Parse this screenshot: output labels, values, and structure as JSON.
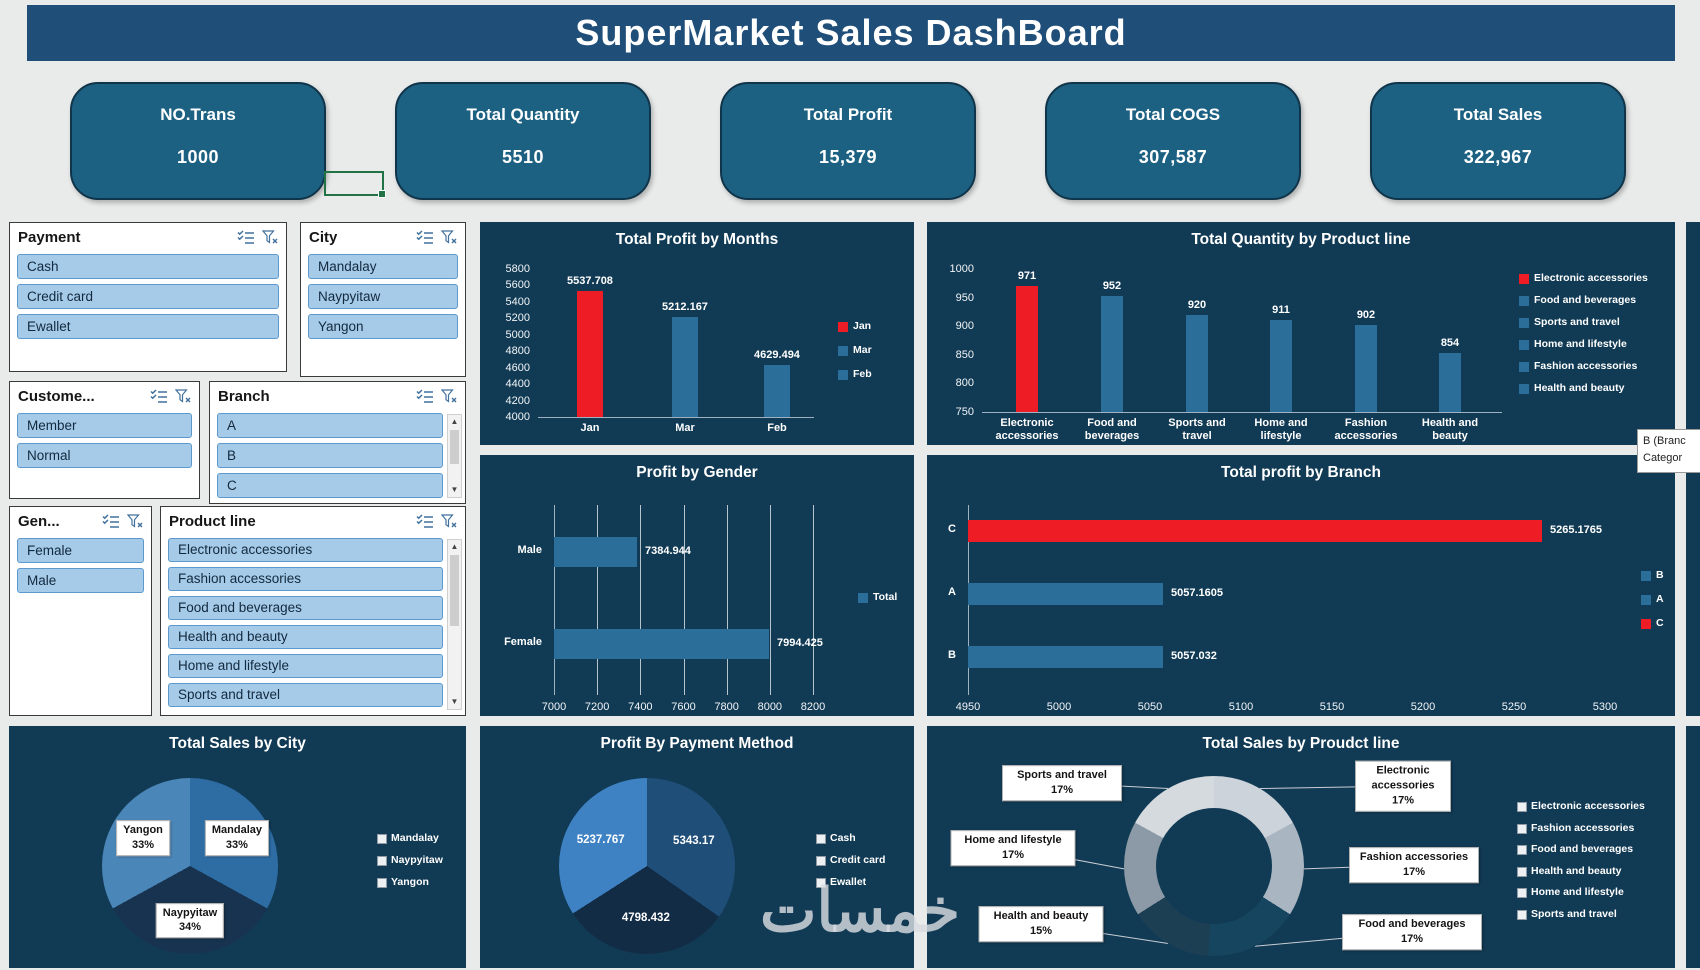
{
  "title": "SuperMarket Sales DashBoard",
  "kpis": [
    {
      "label": "NO.Trans",
      "value": "1000"
    },
    {
      "label": "Total Quantity",
      "value": "5510"
    },
    {
      "label": "Total Profit",
      "value": "15,379"
    },
    {
      "label": "Total COGS",
      "value": "307,587"
    },
    {
      "label": "Total Sales",
      "value": "322,967"
    }
  ],
  "slicers": [
    {
      "title": "Payment",
      "items": [
        "Cash",
        "Credit card",
        "Ewallet"
      ]
    },
    {
      "title": "City",
      "items": [
        "Mandalay",
        "Naypyitaw",
        "Yangon"
      ]
    },
    {
      "title": "Custome...",
      "items": [
        "Member",
        "Normal"
      ]
    },
    {
      "title": "Branch",
      "items": [
        "A",
        "B",
        "C"
      ]
    },
    {
      "title": "Gen...",
      "items": [
        "Female",
        "Male"
      ]
    },
    {
      "title": "Product line",
      "items": [
        "Electronic accessories",
        "Fashion accessories",
        "Food and beverages",
        "Health and beauty",
        "Home and lifestyle",
        "Sports and travel"
      ]
    }
  ],
  "tooltip": {
    "line1": "B (Branc",
    "line2": "Categor"
  },
  "watermark": "خمسات",
  "chart_data": [
    {
      "id": "profit_by_months",
      "type": "bar",
      "title": "Total Profit by Months",
      "categories": [
        "Jan",
        "Mar",
        "Feb"
      ],
      "values": [
        5537.708,
        5212.167,
        4629.494
      ],
      "labels": [
        "5537.708",
        "5212.167",
        "4629.494"
      ],
      "bar_colors": [
        "#ee1c25",
        "#2b6e99",
        "#2b6e99"
      ],
      "ylim": [
        4000,
        5800
      ],
      "yticks": [
        5800,
        5600,
        5400,
        5200,
        5000,
        4800,
        4600,
        4400,
        4200,
        4000
      ],
      "legend": [
        {
          "label": "Jan",
          "color": "#ee1c25"
        },
        {
          "label": "Mar",
          "color": "#2b6e99"
        },
        {
          "label": "Feb",
          "color": "#2b6e99"
        }
      ]
    },
    {
      "id": "qty_by_product",
      "type": "bar",
      "title": "Total Quantity by Product line",
      "categories": [
        "Electronic\naccessories",
        "Food and\nbeverages",
        "Sports and\ntravel",
        "Home and\nlifestyle",
        "Fashion\naccessories",
        "Health and\nbeauty"
      ],
      "values": [
        971,
        952,
        920,
        911,
        902,
        854
      ],
      "labels": [
        "971",
        "952",
        "920",
        "911",
        "902",
        "854"
      ],
      "bar_colors": [
        "#ee1c25",
        "#2b6e99",
        "#2b6e99",
        "#2b6e99",
        "#2b6e99",
        "#2b6e99"
      ],
      "ylim": [
        750,
        1000
      ],
      "yticks": [
        1000,
        950,
        900,
        850,
        800,
        750
      ],
      "legend": [
        {
          "label": "Electronic accessories",
          "color": "#ee1c25"
        },
        {
          "label": "Food and beverages",
          "color": "#2b6e99"
        },
        {
          "label": "Sports and travel",
          "color": "#2b6e99"
        },
        {
          "label": "Home and lifestyle",
          "color": "#2b6e99"
        },
        {
          "label": "Fashion accessories",
          "color": "#2b6e99"
        },
        {
          "label": "Health and beauty",
          "color": "#2b6e99"
        }
      ]
    },
    {
      "id": "profit_by_gender",
      "type": "hbar",
      "title": "Profit by Gender",
      "categories": [
        "Male",
        "Female"
      ],
      "values": [
        7384.944,
        7994.425
      ],
      "labels": [
        "7384.944",
        "7994.425"
      ],
      "bar_colors": [
        "#2b6e99",
        "#2b6e99"
      ],
      "xlim": [
        7000,
        8200
      ],
      "xticks": [
        7000,
        7200,
        7400,
        7600,
        7800,
        8000,
        8200
      ],
      "grid": true,
      "legend": [
        {
          "label": "Total",
          "color": "#2b6e99"
        }
      ]
    },
    {
      "id": "profit_by_branch",
      "type": "hbar",
      "title": "Total profit by Branch",
      "categories": [
        "C",
        "A",
        "B"
      ],
      "values": [
        5265.1765,
        5057.1605,
        5057.032
      ],
      "labels": [
        "5265.1765",
        "5057.1605",
        "5057.032"
      ],
      "bar_colors": [
        "#ee1c25",
        "#2b6e99",
        "#2b6e99"
      ],
      "xlim": [
        4950,
        5300
      ],
      "xticks": [
        4950,
        5000,
        5050,
        5100,
        5150,
        5200,
        5250,
        5300
      ],
      "grid": false,
      "legend": [
        {
          "label": "B",
          "color": "#2b6e99"
        },
        {
          "label": "A",
          "color": "#2b6e99"
        },
        {
          "label": "C",
          "color": "#ee1c25"
        }
      ]
    },
    {
      "id": "sales_by_city",
      "type": "pie",
      "title": "Total Sales by City",
      "label_mode": "box",
      "slices": [
        {
          "name": "Mandalay",
          "value": 33,
          "color": "#2e6da4",
          "label": "Mandalay\n33%"
        },
        {
          "name": "Naypyitaw",
          "value": 34,
          "color": "#17334f",
          "label": "Naypyitaw\n34%"
        },
        {
          "name": "Yangon",
          "value": 33,
          "color": "#4b86b8",
          "label": "Yangon\n33%"
        }
      ],
      "legend": [
        "Mandalay",
        "Naypyitaw",
        "Yangon"
      ]
    },
    {
      "id": "profit_by_payment",
      "type": "pie",
      "title": "Profit By Payment Method",
      "label_mode": "plain",
      "slices": [
        {
          "name": "Cash",
          "value": 5343.17,
          "color": "#1f4e79",
          "label": "5343.17"
        },
        {
          "name": "Credit card",
          "value": 4798.432,
          "color": "#132c45",
          "label": "4798.432"
        },
        {
          "name": "Ewallet",
          "value": 5237.767,
          "color": "#3e82c4",
          "label": "5237.767"
        }
      ],
      "legend": [
        "Cash",
        "Credit card",
        "Ewallet"
      ]
    },
    {
      "id": "sales_by_product",
      "type": "donut",
      "title": "Total Sales by Proudct line",
      "slices": [
        {
          "name": "Electronic accessories",
          "value": 17,
          "color": "#ccd3da",
          "label": "Electronic accessories\n17%"
        },
        {
          "name": "Fashion accessories",
          "value": 17,
          "color": "#a9b6c1",
          "label": "Fashion accessories\n17%"
        },
        {
          "name": "Food and beverages",
          "value": 17,
          "color": "#16455f",
          "label": "Food and beverages\n17%"
        },
        {
          "name": "Health and beauty",
          "value": 15,
          "color": "#1d3f54",
          "label": "Health and beauty\n15%"
        },
        {
          "name": "Home and lifestyle",
          "value": 17,
          "color": "#8b9aa6",
          "label": "Home and lifestyle\n17%"
        },
        {
          "name": "Sports and travel",
          "value": 17,
          "color": "#d5dade",
          "label": "Sports and travel\n17%"
        }
      ],
      "legend": [
        "Electronic accessories",
        "Fashion accessories",
        "Food and beverages",
        "Health and beauty",
        "Home and lifestyle",
        "Sports and travel"
      ]
    }
  ]
}
